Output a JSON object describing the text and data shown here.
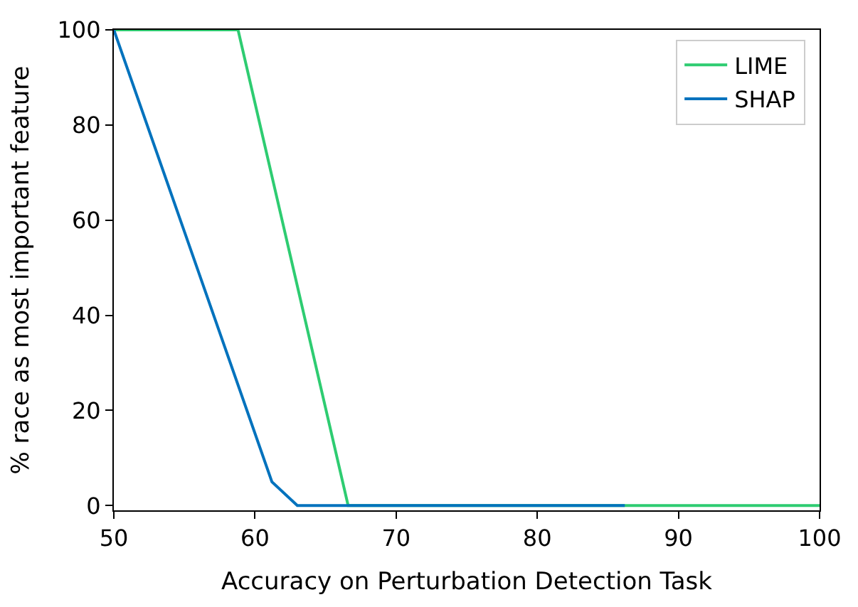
{
  "chart_data": {
    "type": "line",
    "xlabel": "Accuracy on Perturbation Detection Task",
    "ylabel": "% race as most important feature",
    "series": [
      {
        "name": "LIME",
        "color": "#2ecc71",
        "x": [
          50,
          58.8,
          66.6,
          100
        ],
        "values": [
          100,
          100,
          0,
          0
        ]
      },
      {
        "name": "SHAP",
        "color": "#0072bd",
        "x": [
          50,
          61.2,
          63.0,
          86.2
        ],
        "values": [
          100,
          5,
          0,
          0
        ]
      }
    ],
    "xlim": [
      50,
      100
    ],
    "xticks": [
      50,
      60,
      70,
      80,
      90,
      100
    ],
    "ylim": [
      -1,
      100
    ],
    "yticks": [
      0,
      20,
      40,
      60,
      80,
      100
    ],
    "legend": "top right",
    "marker": "none",
    "line_style": "solid"
  }
}
